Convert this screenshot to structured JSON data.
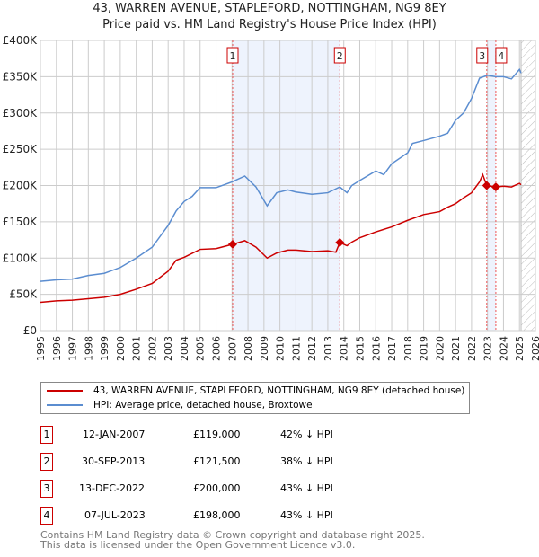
{
  "chart_data": {
    "type": "line",
    "title": "43, WARREN AVENUE, STAPLEFORD, NOTTINGHAM, NG9 8EY",
    "subtitle": "Price paid vs. HM Land Registry's House Price Index (HPI)",
    "xlim": [
      1995,
      2026
    ],
    "ylim": [
      0,
      400000
    ],
    "x_ticks": [
      "1995",
      "1996",
      "1997",
      "1998",
      "1999",
      "2000",
      "2001",
      "2002",
      "2003",
      "2004",
      "2005",
      "2006",
      "2007",
      "2008",
      "2009",
      "2010",
      "2011",
      "2012",
      "2013",
      "2014",
      "2015",
      "2016",
      "2017",
      "2018",
      "2019",
      "2020",
      "2021",
      "2022",
      "2023",
      "2024",
      "2025",
      "2026"
    ],
    "y_ticks": [
      {
        "v": 0,
        "label": "£0"
      },
      {
        "v": 50000,
        "label": "£50K"
      },
      {
        "v": 100000,
        "label": "£100K"
      },
      {
        "v": 150000,
        "label": "£150K"
      },
      {
        "v": 200000,
        "label": "£200K"
      },
      {
        "v": 250000,
        "label": "£250K"
      },
      {
        "v": 300000,
        "label": "£300K"
      },
      {
        "v": 350000,
        "label": "£350K"
      },
      {
        "v": 400000,
        "label": "£400K"
      }
    ],
    "grid": true,
    "series": [
      {
        "name": "43, WARREN AVENUE, STAPLEFORD, NOTTINGHAM, NG9 8EY (detached house)",
        "color": "#cc0000",
        "x": [
          1995,
          1996,
          1997,
          1998,
          1999,
          2000,
          2001,
          2002,
          2003,
          2003.5,
          2004,
          2005,
          2006,
          2007.04,
          2007.8,
          2008.5,
          2009.2,
          2009.8,
          2010.5,
          2011,
          2012,
          2013,
          2013.5,
          2013.75,
          2014.2,
          2014.5,
          2015,
          2016,
          2017,
          2018,
          2019,
          2020,
          2020.5,
          2021,
          2021.5,
          2022,
          2022.5,
          2022.7,
          2022.95,
          2023.5,
          2024,
          2024.5,
          2025,
          2025.1
        ],
        "y": [
          39000,
          41000,
          42000,
          44000,
          46000,
          50000,
          57000,
          65000,
          82000,
          97000,
          101000,
          112000,
          113000,
          119000,
          124000,
          115000,
          100000,
          107000,
          111000,
          111000,
          109000,
          110000,
          108000,
          121500,
          117000,
          122000,
          128000,
          136000,
          143000,
          152000,
          160000,
          164000,
          170000,
          175000,
          183000,
          190000,
          205000,
          215000,
          200000,
          198000,
          199000,
          198000,
          203000,
          201000
        ]
      },
      {
        "name": "HPI: Average price, detached house, Broxtowe",
        "color": "#5b8dd0",
        "x": [
          1995,
          1996,
          1997,
          1998,
          1999,
          2000,
          2001,
          2002,
          2003,
          2003.5,
          2004,
          2004.5,
          2005,
          2006,
          2007,
          2007.8,
          2008.5,
          2009.2,
          2009.8,
          2010.5,
          2011,
          2012,
          2013,
          2013.75,
          2014.2,
          2014.5,
          2015,
          2016,
          2016.5,
          2017,
          2018,
          2018.3,
          2019,
          2020,
          2020.5,
          2021,
          2021.5,
          2022,
          2022.5,
          2023,
          2023.5,
          2024,
          2024.5,
          2025,
          2025.1
        ],
        "y": [
          68000,
          70000,
          71000,
          76000,
          79000,
          87000,
          100000,
          115000,
          145000,
          165000,
          178000,
          185000,
          197000,
          197000,
          205000,
          213000,
          198000,
          172000,
          190000,
          194000,
          191000,
          188000,
          190000,
          198000,
          190000,
          200000,
          207000,
          220000,
          215000,
          230000,
          245000,
          258000,
          262000,
          268000,
          272000,
          290000,
          300000,
          320000,
          348000,
          352000,
          350000,
          350000,
          347000,
          360000,
          355000
        ]
      }
    ],
    "sales": [
      {
        "n": "1",
        "date": "12-JAN-2007",
        "x": 2007.04,
        "price": 119000,
        "price_label": "£119,000",
        "hpi": "42% ↓ HPI"
      },
      {
        "n": "2",
        "date": "30-SEP-2013",
        "x": 2013.75,
        "price": 121500,
        "price_label": "£121,500",
        "hpi": "38% ↓ HPI"
      },
      {
        "n": "3",
        "date": "13-DEC-2022",
        "x": 2022.95,
        "price": 200000,
        "price_label": "£200,000",
        "hpi": "43% ↓ HPI"
      },
      {
        "n": "4",
        "date": "07-JUL-2023",
        "x": 2023.52,
        "price": 198000,
        "price_label": "£198,000",
        "hpi": "43% ↓ HPI"
      }
    ],
    "forecast_from": 2025.1
  },
  "footer": {
    "line1": "Contains HM Land Registry data © Crown copyright and database right 2025.",
    "line2": "This data is licensed under the Open Government Licence v3.0."
  }
}
